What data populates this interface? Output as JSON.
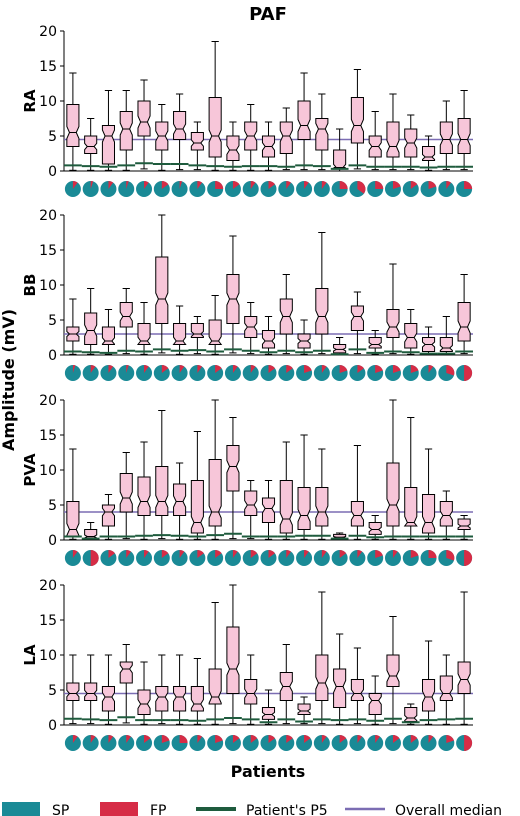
{
  "figure": {
    "title": "PAF",
    "ylabel": "Amplitude (mV)",
    "xlabel": "Patients"
  },
  "colors": {
    "box_fill": "#f7c6d9",
    "sp": "#1a8a96",
    "fp": "#d62c46",
    "p5": "#1e5b3d",
    "median_line": "#7b6db3"
  },
  "legend": [
    {
      "key": "sp",
      "label": "SP"
    },
    {
      "key": "fp",
      "label": "FP"
    },
    {
      "key": "p5",
      "label": "Patient's P5"
    },
    {
      "key": "median",
      "label": "Overall median"
    }
  ],
  "chart_data": [
    {
      "type": "box",
      "panel": "RA",
      "ylim": [
        0,
        20
      ],
      "yticks": [
        0,
        5,
        10,
        15,
        20
      ],
      "overall_median": 4.5,
      "boxes": [
        {
          "whislo": 0.1,
          "q1": 3.5,
          "med": 5.5,
          "q3": 9.5,
          "whishi": 14
        },
        {
          "whislo": 0.1,
          "q1": 2.5,
          "med": 3.5,
          "q3": 5.0,
          "whishi": 7.5
        },
        {
          "whislo": 0.1,
          "q1": 1.0,
          "med": 5.0,
          "q3": 6.5,
          "whishi": 11.5
        },
        {
          "whislo": 0.1,
          "q1": 3.0,
          "med": 6.0,
          "q3": 8.5,
          "whishi": 11.5
        },
        {
          "whislo": 0.3,
          "q1": 5.0,
          "med": 7.0,
          "q3": 10.0,
          "whishi": 13.0
        },
        {
          "whislo": 0.1,
          "q1": 3.0,
          "med": 5.0,
          "q3": 7.0,
          "whishi": 9.5
        },
        {
          "whislo": 0.2,
          "q1": 4.5,
          "med": 6.0,
          "q3": 8.5,
          "whishi": 11.0
        },
        {
          "whislo": 0.2,
          "q1": 3.0,
          "med": 4.0,
          "q3": 5.5,
          "whishi": 7.0
        },
        {
          "whislo": 0.1,
          "q1": 2.0,
          "med": 5.0,
          "q3": 10.5,
          "whishi": 18.5
        },
        {
          "whislo": 0.1,
          "q1": 1.5,
          "med": 3.0,
          "q3": 5.0,
          "whishi": 7.0
        },
        {
          "whislo": 0.1,
          "q1": 3.0,
          "med": 5.0,
          "q3": 7.0,
          "whishi": 9.5
        },
        {
          "whislo": 0.1,
          "q1": 2.0,
          "med": 3.5,
          "q3": 5.0,
          "whishi": 7.0
        },
        {
          "whislo": 0.2,
          "q1": 2.5,
          "med": 5.0,
          "q3": 7.0,
          "whishi": 9.0
        },
        {
          "whislo": 0.2,
          "q1": 4.5,
          "med": 6.5,
          "q3": 10.0,
          "whishi": 14.0
        },
        {
          "whislo": 0.2,
          "q1": 3.0,
          "med": 6.0,
          "q3": 7.5,
          "whishi": 11.0
        },
        {
          "whislo": 0.0,
          "q1": 0.5,
          "med": 0.5,
          "q3": 3.0,
          "whishi": 6.0
        },
        {
          "whislo": 0.3,
          "q1": 4.0,
          "med": 6.5,
          "q3": 10.5,
          "whishi": 14.5
        },
        {
          "whislo": 0.2,
          "q1": 2.0,
          "med": 3.5,
          "q3": 5.0,
          "whishi": 8.5
        },
        {
          "whislo": 0.2,
          "q1": 2.0,
          "med": 3.5,
          "q3": 7.0,
          "whishi": 11.0
        },
        {
          "whislo": 0.2,
          "q1": 2.0,
          "med": 4.0,
          "q3": 6.0,
          "whishi": 8.0
        },
        {
          "whislo": 0.1,
          "q1": 1.5,
          "med": 2.0,
          "q3": 3.5,
          "whishi": 5.0
        },
        {
          "whislo": 0.2,
          "q1": 2.5,
          "med": 4.5,
          "q3": 7.0,
          "whishi": 10.0
        },
        {
          "whislo": 0.2,
          "q1": 2.5,
          "med": 4.5,
          "q3": 7.5,
          "whishi": 11.5
        }
      ],
      "p5": [
        0.8,
        0.7,
        0.6,
        0.8,
        1.1,
        1.0,
        1.0,
        0.8,
        0.7,
        0.6,
        0.7,
        0.7,
        0.6,
        0.8,
        0.7,
        0.3,
        0.8,
        0.6,
        0.6,
        0.6,
        0.5,
        0.6,
        0.6
      ],
      "fp_fraction": [
        0.1,
        0.05,
        0.1,
        0.05,
        0.1,
        0.15,
        0.05,
        0.1,
        0.25,
        0.15,
        0.1,
        0.15,
        0.1,
        0.1,
        0.1,
        0.25,
        0.35,
        0.25,
        0.2,
        0.15,
        0.2,
        0.1,
        0.25
      ]
    },
    {
      "type": "box",
      "panel": "BB",
      "ylim": [
        0,
        20
      ],
      "yticks": [
        0,
        5,
        10,
        15,
        20
      ],
      "overall_median": 3.0,
      "boxes": [
        {
          "whislo": 0.1,
          "q1": 2.0,
          "med": 3.0,
          "q3": 4.0,
          "whishi": 8.0
        },
        {
          "whislo": 0.1,
          "q1": 1.5,
          "med": 3.5,
          "q3": 6.0,
          "whishi": 9.5
        },
        {
          "whislo": 0.1,
          "q1": 1.5,
          "med": 2.0,
          "q3": 4.0,
          "whishi": 6.5
        },
        {
          "whislo": 0.2,
          "q1": 4.0,
          "med": 5.5,
          "q3": 7.5,
          "whishi": 9.5
        },
        {
          "whislo": 0.1,
          "q1": 1.5,
          "med": 2.0,
          "q3": 4.5,
          "whishi": 7.5
        },
        {
          "whislo": 0.3,
          "q1": 4.5,
          "med": 8.0,
          "q3": 14.0,
          "whishi": 20.0
        },
        {
          "whislo": 0.1,
          "q1": 1.5,
          "med": 2.0,
          "q3": 4.5,
          "whishi": 7.0
        },
        {
          "whislo": 0.2,
          "q1": 2.5,
          "med": 3.0,
          "q3": 4.5,
          "whishi": 5.5
        },
        {
          "whislo": 0.1,
          "q1": 1.5,
          "med": 2.0,
          "q3": 5.0,
          "whishi": 8.5
        },
        {
          "whislo": 0.3,
          "q1": 4.5,
          "med": 8.0,
          "q3": 11.5,
          "whishi": 17.0
        },
        {
          "whislo": 0.2,
          "q1": 2.5,
          "med": 4.0,
          "q3": 5.5,
          "whishi": 7.5
        },
        {
          "whislo": 0.1,
          "q1": 1.0,
          "med": 2.0,
          "q3": 3.5,
          "whishi": 5.5
        },
        {
          "whislo": 0.2,
          "q1": 3.0,
          "med": 5.5,
          "q3": 8.0,
          "whishi": 11.5
        },
        {
          "whislo": 0.1,
          "q1": 1.0,
          "med": 2.0,
          "q3": 3.0,
          "whishi": 5.0
        },
        {
          "whislo": 0.2,
          "q1": 3.0,
          "med": 5.5,
          "q3": 9.5,
          "whishi": 17.5
        },
        {
          "whislo": 0.0,
          "q1": 0.3,
          "med": 0.8,
          "q3": 1.5,
          "whishi": 2.5
        },
        {
          "whislo": 0.2,
          "q1": 3.5,
          "med": 5.5,
          "q3": 7.0,
          "whishi": 9.0
        },
        {
          "whislo": 0.1,
          "q1": 1.0,
          "med": 1.5,
          "q3": 2.5,
          "whishi": 3.5
        },
        {
          "whislo": 0.2,
          "q1": 2.5,
          "med": 4.0,
          "q3": 6.5,
          "whishi": 13.0
        },
        {
          "whislo": 0.1,
          "q1": 1.0,
          "med": 2.5,
          "q3": 4.5,
          "whishi": 6.5
        },
        {
          "whislo": 0.1,
          "q1": 0.5,
          "med": 1.5,
          "q3": 2.5,
          "whishi": 4.0
        },
        {
          "whislo": 0.1,
          "q1": 0.5,
          "med": 1.0,
          "q3": 2.5,
          "whishi": 5.5
        },
        {
          "whislo": 0.2,
          "q1": 2.0,
          "med": 4.0,
          "q3": 7.5,
          "whishi": 11.5
        }
      ],
      "p5": [
        0.5,
        0.4,
        0.3,
        0.6,
        0.5,
        0.8,
        0.6,
        0.7,
        0.5,
        0.8,
        0.6,
        0.4,
        0.6,
        0.4,
        0.6,
        0.1,
        0.8,
        0.3,
        0.5,
        0.4,
        0.2,
        0.2,
        0.5
      ],
      "fp_fraction": [
        0.05,
        0.1,
        0.1,
        0.05,
        0.1,
        0.15,
        0.1,
        0.1,
        0.15,
        0.1,
        0.1,
        0.15,
        0.15,
        0.2,
        0.1,
        0.2,
        0.15,
        0.2,
        0.2,
        0.2,
        0.1,
        0.3,
        0.5
      ]
    },
    {
      "type": "box",
      "panel": "PVA",
      "ylim": [
        0,
        20
      ],
      "yticks": [
        0,
        5,
        10,
        15,
        20
      ],
      "overall_median": 4.0,
      "boxes": [
        {
          "whislo": 0.1,
          "q1": 0.5,
          "med": 1.5,
          "q3": 5.5,
          "whishi": 13.0
        },
        {
          "whislo": 0.0,
          "q1": 0.3,
          "med": 0.5,
          "q3": 1.5,
          "whishi": 2.5
        },
        {
          "whislo": 0.1,
          "q1": 2.0,
          "med": 4.0,
          "q3": 5.0,
          "whishi": 6.5
        },
        {
          "whislo": 0.2,
          "q1": 4.0,
          "med": 6.0,
          "q3": 9.5,
          "whishi": 12.5
        },
        {
          "whislo": 0.1,
          "q1": 3.5,
          "med": 5.5,
          "q3": 9.0,
          "whishi": 14.0
        },
        {
          "whislo": 0.2,
          "q1": 3.5,
          "med": 5.5,
          "q3": 10.5,
          "whishi": 18.5
        },
        {
          "whislo": 0.1,
          "q1": 3.5,
          "med": 5.5,
          "q3": 8.0,
          "whishi": 11.0
        },
        {
          "whislo": 0.1,
          "q1": 1.0,
          "med": 2.5,
          "q3": 8.5,
          "whishi": 15.5
        },
        {
          "whislo": 0.1,
          "q1": 2.0,
          "med": 4.0,
          "q3": 11.5,
          "whishi": 20.0
        },
        {
          "whislo": 0.2,
          "q1": 7.0,
          "med": 10.5,
          "q3": 13.5,
          "whishi": 17.5
        },
        {
          "whislo": 0.2,
          "q1": 3.5,
          "med": 5.0,
          "q3": 7.0,
          "whishi": 8.5
        },
        {
          "whislo": 0.1,
          "q1": 2.5,
          "med": 4.5,
          "q3": 6.0,
          "whishi": 8.5
        },
        {
          "whislo": 0.1,
          "q1": 1.0,
          "med": 3.0,
          "q3": 8.5,
          "whishi": 14.0
        },
        {
          "whislo": 0.1,
          "q1": 1.5,
          "med": 3.5,
          "q3": 7.5,
          "whishi": 15.0
        },
        {
          "whislo": 0.1,
          "q1": 2.0,
          "med": 4.0,
          "q3": 7.5,
          "whishi": 13.0
        },
        {
          "whislo": 0.0,
          "q1": 0.2,
          "med": 0.4,
          "q3": 0.8,
          "whishi": 1.0
        },
        {
          "whislo": 0.1,
          "q1": 2.0,
          "med": 3.5,
          "q3": 5.5,
          "whishi": 13.5
        },
        {
          "whislo": 0.1,
          "q1": 0.8,
          "med": 1.5,
          "q3": 2.5,
          "whishi": 3.5
        },
        {
          "whislo": 0.1,
          "q1": 2.0,
          "med": 5.0,
          "q3": 11.0,
          "whishi": 20.0
        },
        {
          "whislo": 0.1,
          "q1": 2.0,
          "med": 2.5,
          "q3": 7.5,
          "whishi": 17.5
        },
        {
          "whislo": 0.1,
          "q1": 1.0,
          "med": 2.5,
          "q3": 6.5,
          "whishi": 13.0
        },
        {
          "whislo": 0.1,
          "q1": 2.0,
          "med": 3.5,
          "q3": 5.5,
          "whishi": 7.0
        },
        {
          "whislo": 0.1,
          "q1": 1.5,
          "med": 2.0,
          "q3": 3.0,
          "whishi": 3.5
        }
      ],
      "p5": [
        0.5,
        0.2,
        0.5,
        0.5,
        0.6,
        0.7,
        0.6,
        0.5,
        0.7,
        0.9,
        0.5,
        0.5,
        0.5,
        0.6,
        0.6,
        0.2,
        0.6,
        0.4,
        0.5,
        0.5,
        0.5,
        0.5,
        0.5
      ],
      "fp_fraction": [
        0.1,
        0.5,
        0.15,
        0.1,
        0.1,
        0.15,
        0.1,
        0.15,
        0.15,
        0.1,
        0.15,
        0.15,
        0.1,
        0.1,
        0.1,
        0.15,
        0.1,
        0.2,
        0.1,
        0.2,
        0.25,
        0.3,
        0.5
      ]
    },
    {
      "type": "box",
      "panel": "LA",
      "ylim": [
        0,
        20
      ],
      "yticks": [
        0,
        5,
        10,
        15,
        20
      ],
      "overall_median": 4.5,
      "boxes": [
        {
          "whislo": 0.2,
          "q1": 3.5,
          "med": 4.5,
          "q3": 6.0,
          "whishi": 10.0
        },
        {
          "whislo": 0.2,
          "q1": 3.5,
          "med": 4.5,
          "q3": 6.0,
          "whishi": 10.0
        },
        {
          "whislo": 0.1,
          "q1": 2.0,
          "med": 4.0,
          "q3": 5.5,
          "whishi": 10.0
        },
        {
          "whislo": 0.3,
          "q1": 6.0,
          "med": 8.0,
          "q3": 9.0,
          "whishi": 11.5
        },
        {
          "whislo": 0.1,
          "q1": 1.5,
          "med": 3.0,
          "q3": 5.0,
          "whishi": 9.0
        },
        {
          "whislo": 0.2,
          "q1": 2.0,
          "med": 4.0,
          "q3": 5.5,
          "whishi": 10.0
        },
        {
          "whislo": 0.1,
          "q1": 2.0,
          "med": 4.0,
          "q3": 5.5,
          "whishi": 10.0
        },
        {
          "whislo": 0.1,
          "q1": 2.0,
          "med": 3.0,
          "q3": 5.5,
          "whishi": 9.5
        },
        {
          "whislo": 0.1,
          "q1": 3.0,
          "med": 4.0,
          "q3": 8.0,
          "whishi": 17.5
        },
        {
          "whislo": 0.2,
          "q1": 4.5,
          "med": 8.0,
          "q3": 14.0,
          "whishi": 20.0
        },
        {
          "whislo": 0.1,
          "q1": 3.0,
          "med": 4.5,
          "q3": 6.5,
          "whishi": 10.0
        },
        {
          "whislo": 0.1,
          "q1": 0.8,
          "med": 1.5,
          "q3": 2.5,
          "whishi": 5.0
        },
        {
          "whislo": 0.2,
          "q1": 3.5,
          "med": 5.5,
          "q3": 7.5,
          "whishi": 11.5
        },
        {
          "whislo": 0.2,
          "q1": 1.5,
          "med": 2.0,
          "q3": 3.0,
          "whishi": 4.0
        },
        {
          "whislo": 0.2,
          "q1": 3.5,
          "med": 6.0,
          "q3": 10.0,
          "whishi": 19.0
        },
        {
          "whislo": 0.1,
          "q1": 2.5,
          "med": 5.5,
          "q3": 8.0,
          "whishi": 13.0
        },
        {
          "whislo": 0.2,
          "q1": 3.5,
          "med": 4.5,
          "q3": 6.5,
          "whishi": 11.0
        },
        {
          "whislo": 0.1,
          "q1": 1.5,
          "med": 3.5,
          "q3": 4.5,
          "whishi": 7.0
        },
        {
          "whislo": 0.2,
          "q1": 5.5,
          "med": 7.0,
          "q3": 10.0,
          "whishi": 15.5
        },
        {
          "whislo": 0.1,
          "q1": 0.5,
          "med": 1.0,
          "q3": 2.5,
          "whishi": 3.0
        },
        {
          "whislo": 0.1,
          "q1": 2.0,
          "med": 4.0,
          "q3": 6.5,
          "whishi": 12.0
        },
        {
          "whislo": 0.1,
          "q1": 3.5,
          "med": 4.5,
          "q3": 7.0,
          "whishi": 10.0
        },
        {
          "whislo": 0.1,
          "q1": 4.5,
          "med": 6.5,
          "q3": 9.0,
          "whishi": 19.0
        }
      ],
      "p5": [
        0.9,
        0.8,
        0.7,
        1.1,
        0.7,
        0.7,
        0.7,
        0.6,
        0.8,
        1.0,
        0.8,
        0.4,
        0.8,
        0.5,
        0.8,
        0.7,
        0.8,
        0.6,
        0.9,
        0.4,
        0.7,
        0.8,
        0.9
      ],
      "fp_fraction": [
        0.1,
        0.1,
        0.1,
        0.1,
        0.15,
        0.2,
        0.25,
        0.1,
        0.2,
        0.15,
        0.15,
        0.15,
        0.15,
        0.15,
        0.1,
        0.15,
        0.1,
        0.1,
        0.15,
        0.15,
        0.1,
        0.2,
        0.5
      ]
    }
  ]
}
